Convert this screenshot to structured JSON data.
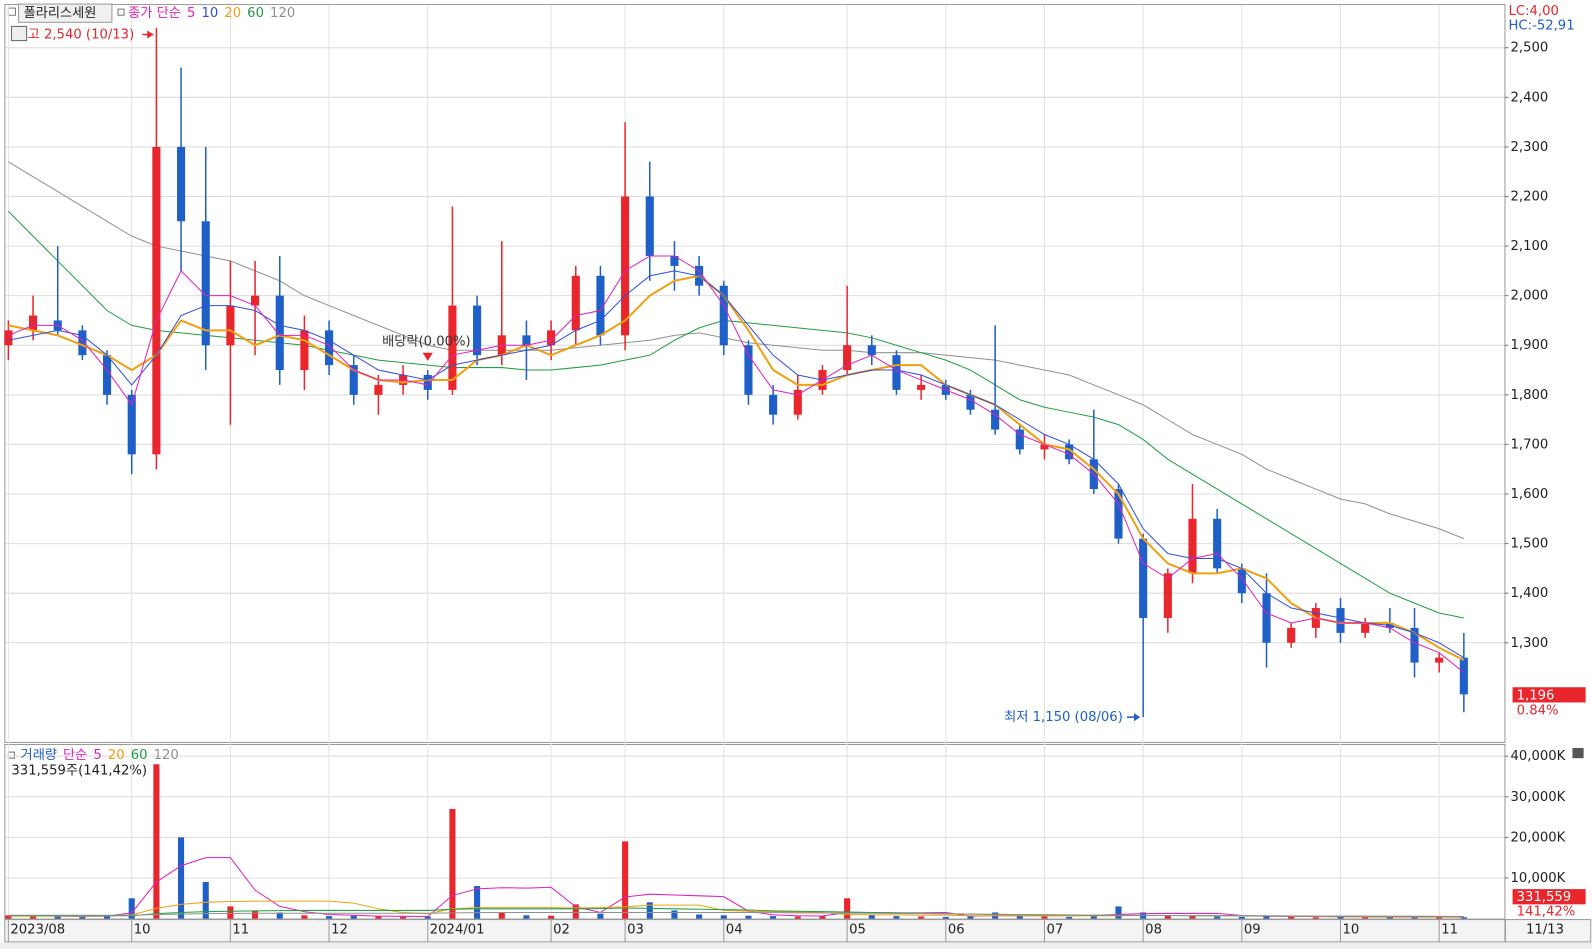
{
  "title": "폴라리스세원",
  "chart_data": {
    "type": "candlestick",
    "ma_label": "종가 단순",
    "categories": [
      "2023/08",
      null,
      null,
      null,
      null,
      "10",
      null,
      null,
      null,
      "11",
      null,
      null,
      null,
      "12",
      null,
      null,
      null,
      "2024/01",
      null,
      null,
      null,
      null,
      "02",
      null,
      null,
      "03",
      null,
      null,
      null,
      "04",
      null,
      null,
      null,
      null,
      "05",
      null,
      null,
      null,
      "06",
      null,
      null,
      null,
      "07",
      null,
      null,
      null,
      "08",
      null,
      null,
      null,
      "09",
      null,
      null,
      null,
      "10",
      null,
      null,
      null,
      "11",
      null
    ],
    "end_date": "11/13",
    "up_color": "#e8262b",
    "down_color": "#1f5fc8",
    "candles": {
      "open": [
        1900,
        1930,
        1950,
        1930,
        1880,
        1800,
        1680,
        2300,
        2150,
        1900,
        1980,
        2000,
        1850,
        1930,
        1860,
        1800,
        1820,
        1840,
        1810,
        1980,
        1880,
        1920,
        1900,
        1930,
        2040,
        1920,
        2200,
        2080,
        2060,
        2020,
        1900,
        1800,
        1760,
        1810,
        1850,
        1900,
        1880,
        1810,
        1820,
        1800,
        1770,
        1730,
        1690,
        1700,
        1670,
        1610,
        1510,
        1350,
        1440,
        1550,
        1450,
        1400,
        1300,
        1330,
        1370,
        1320,
        1340,
        1330,
        1260,
        1270
      ],
      "high": [
        1950,
        2000,
        2100,
        1940,
        1890,
        1810,
        2540,
        2460,
        2300,
        2070,
        2070,
        2080,
        1960,
        1950,
        1880,
        1840,
        1860,
        1850,
        2180,
        2000,
        2110,
        1950,
        1950,
        2060,
        2060,
        2350,
        2270,
        2110,
        2080,
        2030,
        1910,
        1820,
        1840,
        1860,
        2020,
        1920,
        1890,
        1840,
        1830,
        1810,
        1940,
        1740,
        1720,
        1710,
        1770,
        1620,
        1520,
        1450,
        1620,
        1570,
        1460,
        1440,
        1340,
        1380,
        1390,
        1350,
        1370,
        1370,
        1280,
        1320
      ],
      "low": [
        1870,
        1910,
        1920,
        1870,
        1780,
        1640,
        1650,
        2050,
        1850,
        1740,
        1880,
        1820,
        1810,
        1840,
        1780,
        1760,
        1800,
        1790,
        1800,
        1860,
        1860,
        1830,
        1870,
        1900,
        1900,
        1890,
        2030,
        2010,
        2000,
        1880,
        1780,
        1740,
        1750,
        1800,
        1840,
        1860,
        1800,
        1790,
        1790,
        1760,
        1720,
        1680,
        1670,
        1660,
        1600,
        1500,
        1150,
        1320,
        1420,
        1440,
        1380,
        1250,
        1290,
        1310,
        1300,
        1310,
        1320,
        1230,
        1240,
        1160
      ],
      "close": [
        1930,
        1960,
        1930,
        1880,
        1800,
        1680,
        2300,
        2150,
        1900,
        1980,
        2000,
        1850,
        1930,
        1860,
        1800,
        1820,
        1840,
        1810,
        1980,
        1880,
        1920,
        1900,
        1930,
        2040,
        1920,
        2200,
        2080,
        2060,
        2020,
        1900,
        1800,
        1760,
        1810,
        1850,
        1900,
        1880,
        1810,
        1820,
        1800,
        1770,
        1730,
        1690,
        1700,
        1670,
        1610,
        1510,
        1350,
        1440,
        1550,
        1450,
        1400,
        1300,
        1330,
        1370,
        1320,
        1340,
        1330,
        1260,
        1270,
        1196
      ]
    },
    "series": [
      {
        "name": "5",
        "color": "#e020c0",
        "values": [
          1920,
          1940,
          1940,
          1910,
          1850,
          1780,
          1950,
          2050,
          2000,
          2000,
          1980,
          1920,
          1920,
          1900,
          1850,
          1830,
          1830,
          1820,
          1880,
          1890,
          1900,
          1900,
          1910,
          1960,
          1970,
          2050,
          2080,
          2080,
          2050,
          1980,
          1880,
          1810,
          1800,
          1830,
          1860,
          1880,
          1850,
          1830,
          1810,
          1790,
          1760,
          1720,
          1700,
          1680,
          1640,
          1580,
          1460,
          1430,
          1470,
          1480,
          1430,
          1360,
          1340,
          1350,
          1340,
          1340,
          1330,
          1300,
          1280,
          1240
        ]
      },
      {
        "name": "10",
        "color": "#3050e0",
        "values": [
          1910,
          1920,
          1930,
          1920,
          1880,
          1820,
          1880,
          1960,
          1980,
          1980,
          1970,
          1940,
          1930,
          1910,
          1880,
          1850,
          1840,
          1830,
          1860,
          1870,
          1880,
          1890,
          1900,
          1930,
          1950,
          2000,
          2040,
          2050,
          2040,
          2000,
          1940,
          1880,
          1840,
          1830,
          1840,
          1850,
          1850,
          1840,
          1820,
          1800,
          1780,
          1750,
          1720,
          1700,
          1670,
          1620,
          1530,
          1480,
          1470,
          1470,
          1450,
          1400,
          1370,
          1360,
          1350,
          1340,
          1335,
          1320,
          1300,
          1270
        ]
      },
      {
        "name": "20",
        "color": "#f0a010",
        "values": [
          1940,
          1930,
          1920,
          1900,
          1880,
          1850,
          1880,
          1950,
          1930,
          1930,
          1900,
          1920,
          1910,
          1880,
          1850,
          1830,
          1825,
          1830,
          1830,
          1870,
          1880,
          1900,
          1880,
          1900,
          1920,
          1950,
          2000,
          2030,
          2040,
          2000,
          1930,
          1850,
          1820,
          1820,
          1840,
          1850,
          1860,
          1860,
          1820,
          1800,
          1780,
          1740,
          1700,
          1690,
          1650,
          1600,
          1510,
          1460,
          1440,
          1440,
          1450,
          1430,
          1380,
          1350,
          1340,
          1340,
          1340,
          1320,
          1290,
          1265
        ]
      },
      {
        "name": "60",
        "color": "#20a040",
        "values": [
          2170,
          2120,
          2070,
          2020,
          1970,
          1940,
          1930,
          1925,
          1920,
          1915,
          1910,
          1905,
          1900,
          1890,
          1880,
          1870,
          1865,
          1860,
          1855,
          1855,
          1855,
          1850,
          1850,
          1855,
          1860,
          1870,
          1880,
          1910,
          1935,
          1950,
          1945,
          1940,
          1935,
          1930,
          1925,
          1915,
          1900,
          1885,
          1870,
          1850,
          1820,
          1790,
          1775,
          1765,
          1755,
          1740,
          1710,
          1670,
          1640,
          1610,
          1580,
          1550,
          1520,
          1490,
          1460,
          1430,
          1400,
          1380,
          1360,
          1350
        ]
      },
      {
        "name": "120",
        "color": "#909090",
        "values": [
          2270,
          2240,
          2210,
          2180,
          2150,
          2120,
          2100,
          2090,
          2080,
          2070,
          2050,
          2030,
          2000,
          1980,
          1960,
          1940,
          1920,
          1900,
          1890,
          1890,
          1890,
          1890,
          1890,
          1895,
          1900,
          1905,
          1910,
          1920,
          1925,
          1915,
          1905,
          1900,
          1895,
          1890,
          1890,
          1885,
          1885,
          1885,
          1880,
          1875,
          1870,
          1860,
          1850,
          1840,
          1820,
          1800,
          1780,
          1750,
          1720,
          1700,
          1680,
          1650,
          1630,
          1610,
          1590,
          1580,
          1560,
          1545,
          1530,
          1510
        ]
      }
    ],
    "ylim": [
      1100,
      2586
    ],
    "yticks": [
      {
        "value": 1300,
        "label": "1,300"
      },
      {
        "value": 1400,
        "label": "1,400"
      },
      {
        "value": 1500,
        "label": "1,500"
      },
      {
        "value": 1600,
        "label": "1,600"
      },
      {
        "value": 1700,
        "label": "1,700"
      },
      {
        "value": 1800,
        "label": "1,800"
      },
      {
        "value": 1900,
        "label": "1,900"
      },
      {
        "value": 2000,
        "label": "2,000"
      },
      {
        "value": 2100,
        "label": "2,100"
      },
      {
        "value": 2200,
        "label": "2,200"
      },
      {
        "value": 2300,
        "label": "2,300"
      },
      {
        "value": 2400,
        "label": "2,400"
      },
      {
        "value": 2500,
        "label": "2,500"
      }
    ],
    "grid": true,
    "indicators": [
      "LC:4,00",
      "HC:-52,91"
    ],
    "last_price": {
      "value": 1196,
      "label": "1,196",
      "change": "0.84%"
    },
    "annotations": {
      "high": "고 2,540 (10/13)",
      "low": "최저 1,150 (08/06)",
      "dividend": "배당락(0.00%)"
    },
    "volume": {
      "label": "거래량",
      "ma_label": "단순",
      "values": [
        800,
        600,
        500,
        400,
        700,
        5000,
        38000,
        20000,
        9000,
        3000,
        2000,
        1500,
        800,
        600,
        700,
        500,
        400,
        500,
        27000,
        8000,
        1500,
        800,
        700,
        3500,
        1200,
        19000,
        4000,
        2000,
        1000,
        800,
        700,
        600,
        500,
        600,
        5000,
        1000,
        600,
        500,
        400,
        500,
        1500,
        600,
        500,
        400,
        600,
        3000,
        1500,
        800,
        600,
        500,
        400,
        600,
        400,
        300,
        400,
        300,
        300,
        400,
        300,
        331.559
      ],
      "series": [
        {
          "name": "5",
          "color": "#e020c0",
          "values": [
            700,
            650,
            600,
            550,
            600,
            1400,
            9000,
            13000,
            15000,
            15000,
            7000,
            3000,
            1700,
            1000,
            800,
            600,
            550,
            500,
            5700,
            7300,
            7600,
            7500,
            7700,
            2900,
            1500,
            5300,
            6000,
            5800,
            5600,
            5400,
            1800,
            900,
            700,
            640,
            1500,
            1500,
            1400,
            1400,
            1500,
            600,
            700,
            700,
            700,
            700,
            740,
            1020,
            1200,
            1260,
            1260,
            1280,
            760,
            580,
            540,
            480,
            440,
            400,
            340,
            340,
            340,
            330
          ]
        },
        {
          "name": "20",
          "color": "#f0a010",
          "values": [
            600,
            600,
            600,
            600,
            650,
            900,
            2500,
            3500,
            4000,
            4200,
            4300,
            4300,
            4300,
            4300,
            3800,
            2400,
            1500,
            1200,
            2400,
            2700,
            2700,
            2700,
            2700,
            2600,
            2700,
            2900,
            3300,
            3300,
            3300,
            2000,
            1800,
            1700,
            1600,
            1500,
            1000,
            900,
            900,
            800,
            800,
            700,
            700,
            700,
            700,
            650,
            650,
            700,
            750,
            750,
            750,
            750,
            700,
            650,
            600,
            550,
            500,
            450,
            420,
            400,
            380,
            370
          ]
        },
        {
          "name": "60",
          "color": "#20a040",
          "values": [
            700,
            700,
            700,
            700,
            700,
            700,
            1200,
            1500,
            1700,
            1800,
            1900,
            1950,
            2000,
            2000,
            2000,
            2000,
            2000,
            2000,
            2300,
            2400,
            2400,
            2400,
            2400,
            2400,
            2450,
            2600,
            2500,
            2400,
            2300,
            2200,
            2100,
            1900,
            1800,
            1700,
            1600,
            1500,
            1400,
            1300,
            1200,
            1100,
            1000,
            950,
            900,
            850,
            800,
            780,
            760,
            740,
            700,
            680,
            660,
            640,
            620,
            600,
            580,
            560,
            540,
            520,
            500,
            480
          ]
        },
        {
          "name": "120",
          "color": "#909090",
          "values": [
            800,
            800,
            800,
            800,
            800,
            800,
            1000,
            1100,
            1200,
            1250,
            1300,
            1300,
            1300,
            1300,
            1300,
            1300,
            1300,
            1300,
            1400,
            1450,
            1500,
            1500,
            1500,
            1500,
            1500,
            1500,
            1500,
            1500,
            1500,
            1500,
            1500,
            1450,
            1400,
            1380,
            1350,
            1300,
            1250,
            1200,
            1150,
            1100,
            1050,
            1000,
            950,
            900,
            850,
            800,
            780,
            760,
            740,
            720,
            700,
            680,
            660,
            640,
            620,
            600,
            580,
            560,
            540,
            520
          ]
        }
      ],
      "ylim": [
        0,
        43000
      ],
      "yticks": [
        {
          "value": 10000,
          "label": "10,000K"
        },
        {
          "value": 20000,
          "label": "20,000K"
        },
        {
          "value": 30000,
          "label": "30,000K"
        },
        {
          "value": 40000,
          "label": "40,000K"
        }
      ],
      "last_label": "331,559주(141,42%)",
      "last_value_label": "331,559",
      "last_ratio": "141,42%"
    }
  }
}
